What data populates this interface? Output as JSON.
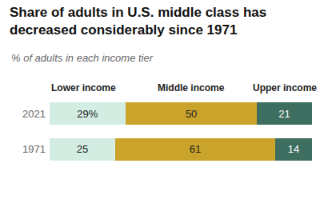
{
  "chart_data": {
    "type": "bar",
    "title": "Share of adults in U.S. middle class has decreased considerably since 1971",
    "subtitle": "% of adults in each income tier",
    "orientation": "horizontal",
    "stacked": true,
    "data_labels": true,
    "tick_labels": "y",
    "grid": false,
    "categories": [
      "2021",
      "1971"
    ],
    "xlim": [
      0,
      100
    ],
    "series": [
      {
        "name": "Lower income",
        "color": "#d3ede3",
        "values": [
          29,
          25
        ],
        "value_labels": [
          "29%",
          "25"
        ]
      },
      {
        "name": "Middle income",
        "color": "#c9a32a",
        "values": [
          50,
          61
        ]
      },
      {
        "name": "Upper income",
        "color": "#3d6e5f",
        "values": [
          21,
          14
        ]
      }
    ]
  }
}
